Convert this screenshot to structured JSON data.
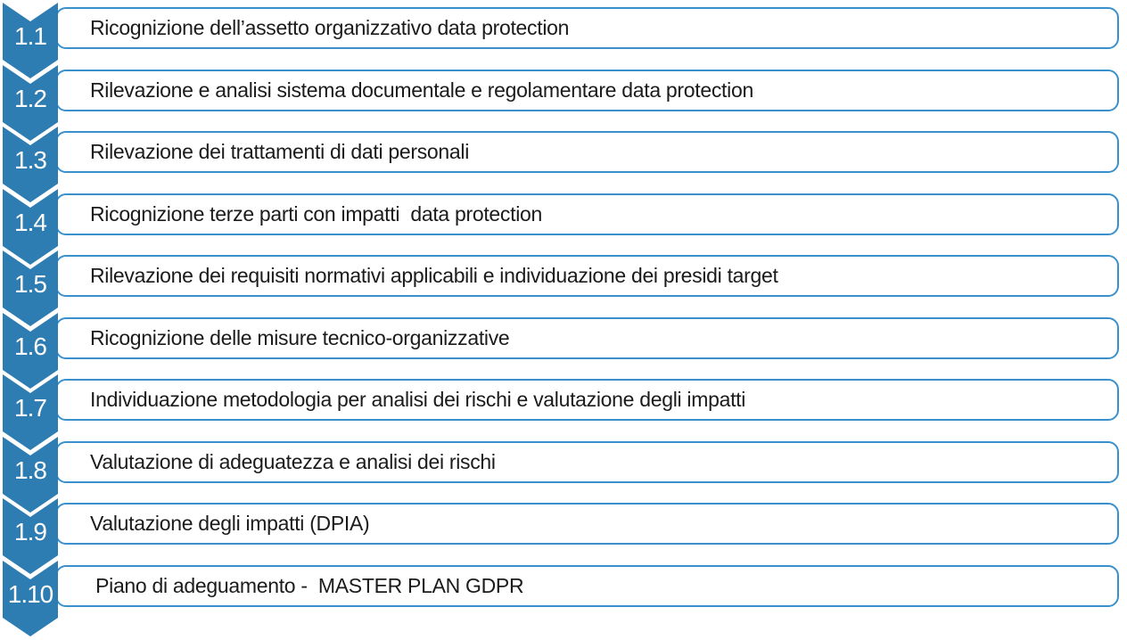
{
  "diagram": {
    "type": "vertical-chevron-list",
    "steps": [
      {
        "number": "1.1",
        "label": "Ricognizione dell’assetto organizzativo data protection"
      },
      {
        "number": "1.2",
        "label": "Rilevazione e analisi sistema documentale e regolamentare data protection"
      },
      {
        "number": "1.3",
        "label": "Rilevazione dei trattamenti di dati personali"
      },
      {
        "number": "1.4",
        "label": "Ricognizione terze parti con impatti  data protection"
      },
      {
        "number": "1.5",
        "label": "Rilevazione dei requisiti normativi applicabili e individuazione dei presidi target"
      },
      {
        "number": "1.6",
        "label": "Ricognizione delle misure tecnico-organizzative"
      },
      {
        "number": "1.7",
        "label": "Individuazione metodologia per analisi dei rischi e valutazione degli impatti"
      },
      {
        "number": "1.8",
        "label": "Valutazione di adeguatezza e analisi dei rischi"
      },
      {
        "number": "1.9",
        "label": "Valutazione degli impatti (DPIA)"
      },
      {
        "number": "1.10",
        "label": " Piano di adeguamento -  MASTER PLAN GDPR"
      }
    ]
  },
  "colors": {
    "chevron_fill": "#2E7DB2",
    "bar_border": "#3990CC",
    "bar_fill": "#FFFFFF",
    "number_text": "#FFFFFF",
    "label_text": "#1B1B1B"
  }
}
